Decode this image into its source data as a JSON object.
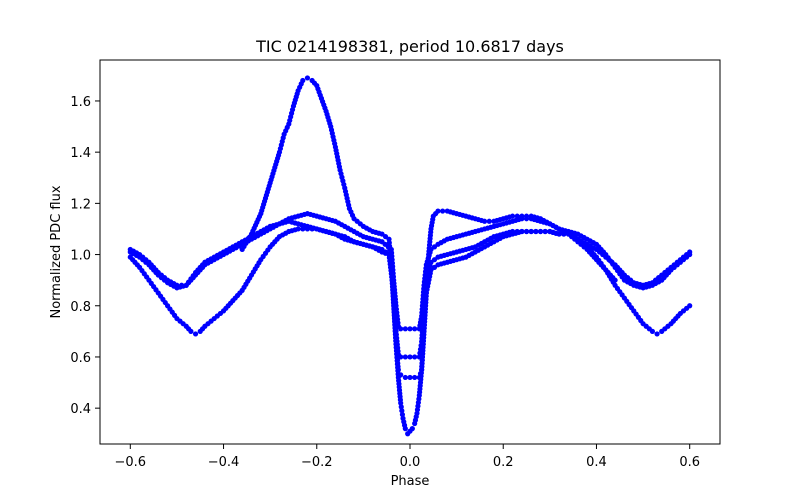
{
  "chart_data": {
    "type": "scatter",
    "title": "TIC 0214198381, period 10.6817 days",
    "xlabel": "Phase",
    "ylabel": "Normalized PDC flux",
    "xlim": [
      -0.665,
      0.665
    ],
    "ylim": [
      0.26,
      1.76
    ],
    "xticks": [
      -0.6,
      -0.4,
      -0.2,
      0.0,
      0.2,
      0.4,
      0.6
    ],
    "xtick_labels": [
      "−0.6",
      "−0.4",
      "−0.2",
      "0.0",
      "0.2",
      "0.4",
      "0.6"
    ],
    "yticks": [
      0.4,
      0.6,
      0.8,
      1.0,
      1.2,
      1.4,
      1.6
    ],
    "ytick_labels": [
      "0.4",
      "0.6",
      "0.8",
      "1.0",
      "1.2",
      "1.4",
      "1.6"
    ],
    "grid": false,
    "marker_color": "#0000ff",
    "series": [
      {
        "points": [
          [
            -0.6,
            1.02
          ],
          [
            -0.58,
            1.0
          ],
          [
            -0.56,
            0.97
          ],
          [
            -0.54,
            0.93
          ],
          [
            -0.52,
            0.9
          ],
          [
            -0.5,
            0.88
          ],
          [
            -0.48,
            0.88
          ],
          [
            -0.46,
            0.92
          ],
          [
            -0.44,
            0.96
          ],
          [
            -0.42,
            0.98
          ],
          [
            -0.4,
            1.0
          ],
          [
            -0.38,
            1.02
          ],
          [
            -0.36,
            1.04
          ],
          [
            -0.34,
            1.06
          ],
          [
            -0.32,
            1.08
          ],
          [
            -0.3,
            1.1
          ],
          [
            -0.28,
            1.12
          ],
          [
            -0.26,
            1.14
          ],
          [
            -0.24,
            1.15
          ],
          [
            -0.22,
            1.16
          ],
          [
            -0.2,
            1.15
          ],
          [
            -0.18,
            1.14
          ],
          [
            -0.16,
            1.13
          ],
          [
            -0.14,
            1.11
          ],
          [
            -0.12,
            1.09
          ],
          [
            -0.1,
            1.07
          ],
          [
            -0.08,
            1.06
          ],
          [
            -0.06,
            1.05
          ],
          [
            -0.04,
            1.02
          ],
          [
            -0.035,
            0.9
          ],
          [
            -0.03,
            0.8
          ],
          [
            -0.025,
            0.72
          ],
          [
            -0.02,
            0.71
          ],
          [
            -0.01,
            0.71
          ],
          [
            0.0,
            0.71
          ],
          [
            0.01,
            0.71
          ],
          [
            0.02,
            0.71
          ],
          [
            0.025,
            0.76
          ],
          [
            0.03,
            0.88
          ],
          [
            0.035,
            0.96
          ],
          [
            0.045,
            1.02
          ],
          [
            0.06,
            1.04
          ],
          [
            0.08,
            1.06
          ],
          [
            0.1,
            1.07
          ],
          [
            0.12,
            1.08
          ],
          [
            0.14,
            1.09
          ],
          [
            0.16,
            1.1
          ],
          [
            0.18,
            1.11
          ],
          [
            0.2,
            1.12
          ],
          [
            0.22,
            1.13
          ],
          [
            0.24,
            1.14
          ],
          [
            0.26,
            1.14
          ],
          [
            0.28,
            1.13
          ],
          [
            0.3,
            1.12
          ],
          [
            0.32,
            1.1
          ],
          [
            0.34,
            1.09
          ],
          [
            0.36,
            1.08
          ],
          [
            0.38,
            1.06
          ],
          [
            0.4,
            1.04
          ],
          [
            0.42,
            1.0
          ],
          [
            0.44,
            0.95
          ],
          [
            0.46,
            0.9
          ],
          [
            0.48,
            0.88
          ],
          [
            0.5,
            0.87
          ],
          [
            0.52,
            0.88
          ],
          [
            0.54,
            0.9
          ],
          [
            0.56,
            0.94
          ],
          [
            0.58,
            0.97
          ],
          [
            0.6,
            1.0
          ]
        ]
      },
      {
        "points": [
          [
            -0.6,
            1.01
          ],
          [
            -0.58,
            0.99
          ],
          [
            -0.56,
            0.96
          ],
          [
            -0.54,
            0.92
          ],
          [
            -0.52,
            0.89
          ],
          [
            -0.5,
            0.87
          ],
          [
            -0.48,
            0.88
          ],
          [
            -0.46,
            0.93
          ],
          [
            -0.44,
            0.97
          ],
          [
            -0.42,
            0.99
          ],
          [
            -0.4,
            1.01
          ],
          [
            -0.38,
            1.03
          ],
          [
            -0.36,
            1.05
          ],
          [
            -0.34,
            1.07
          ],
          [
            -0.32,
            1.09
          ],
          [
            -0.3,
            1.11
          ],
          [
            -0.28,
            1.12
          ],
          [
            -0.26,
            1.13
          ],
          [
            -0.24,
            1.12
          ],
          [
            -0.22,
            1.11
          ],
          [
            -0.2,
            1.1
          ],
          [
            -0.18,
            1.09
          ],
          [
            -0.16,
            1.08
          ],
          [
            -0.14,
            1.06
          ],
          [
            -0.12,
            1.05
          ],
          [
            -0.1,
            1.04
          ],
          [
            -0.08,
            1.03
          ],
          [
            -0.06,
            1.02
          ],
          [
            -0.045,
            1.0
          ],
          [
            -0.035,
            0.85
          ],
          [
            -0.03,
            0.7
          ],
          [
            -0.025,
            0.61
          ],
          [
            -0.02,
            0.6
          ],
          [
            -0.01,
            0.6
          ],
          [
            0.0,
            0.6
          ],
          [
            0.01,
            0.6
          ],
          [
            0.02,
            0.6
          ],
          [
            0.025,
            0.66
          ],
          [
            0.03,
            0.8
          ],
          [
            0.035,
            0.9
          ],
          [
            0.045,
            0.97
          ],
          [
            0.06,
            0.99
          ],
          [
            0.08,
            1.0
          ],
          [
            0.1,
            1.01
          ],
          [
            0.12,
            1.02
          ],
          [
            0.14,
            1.03
          ],
          [
            0.16,
            1.05
          ],
          [
            0.18,
            1.07
          ],
          [
            0.2,
            1.08
          ],
          [
            0.22,
            1.09
          ],
          [
            0.24,
            1.09
          ],
          [
            0.26,
            1.09
          ],
          [
            0.28,
            1.09
          ],
          [
            0.3,
            1.09
          ],
          [
            0.32,
            1.08
          ],
          [
            0.34,
            1.08
          ],
          [
            0.36,
            1.06
          ],
          [
            0.38,
            1.04
          ],
          [
            0.4,
            1.02
          ],
          [
            0.42,
            0.99
          ],
          [
            0.44,
            0.96
          ],
          [
            0.46,
            0.92
          ],
          [
            0.48,
            0.89
          ],
          [
            0.5,
            0.88
          ],
          [
            0.52,
            0.89
          ],
          [
            0.54,
            0.92
          ],
          [
            0.56,
            0.95
          ],
          [
            0.58,
            0.98
          ],
          [
            0.6,
            1.01
          ]
        ]
      },
      {
        "points": [
          [
            -0.6,
            0.99
          ],
          [
            -0.58,
            0.95
          ],
          [
            -0.56,
            0.9
          ],
          [
            -0.54,
            0.85
          ],
          [
            -0.52,
            0.8
          ],
          [
            -0.5,
            0.75
          ],
          [
            -0.48,
            0.72
          ],
          [
            -0.47,
            0.7
          ],
          [
            -0.46,
            0.69
          ],
          [
            -0.45,
            0.7
          ],
          [
            -0.44,
            0.72
          ],
          [
            -0.42,
            0.75
          ],
          [
            -0.4,
            0.78
          ],
          [
            -0.38,
            0.82
          ],
          [
            -0.36,
            0.86
          ],
          [
            -0.34,
            0.92
          ],
          [
            -0.32,
            0.98
          ],
          [
            -0.3,
            1.03
          ],
          [
            -0.28,
            1.07
          ],
          [
            -0.26,
            1.09
          ],
          [
            -0.24,
            1.1
          ],
          [
            -0.22,
            1.1
          ],
          [
            -0.2,
            1.1
          ],
          [
            -0.18,
            1.09
          ],
          [
            -0.16,
            1.08
          ],
          [
            -0.14,
            1.07
          ],
          [
            -0.12,
            1.05
          ],
          [
            -0.1,
            1.04
          ],
          [
            -0.08,
            1.03
          ],
          [
            -0.06,
            1.01
          ],
          [
            -0.045,
            1.0
          ],
          [
            -0.04,
            0.95
          ],
          [
            -0.035,
            0.8
          ],
          [
            -0.03,
            0.65
          ],
          [
            -0.025,
            0.55
          ],
          [
            -0.02,
            0.53
          ],
          [
            -0.01,
            0.52
          ],
          [
            0.0,
            0.52
          ],
          [
            0.01,
            0.52
          ],
          [
            0.02,
            0.52
          ],
          [
            0.025,
            0.55
          ],
          [
            0.03,
            0.7
          ],
          [
            0.035,
            0.85
          ],
          [
            0.045,
            0.94
          ],
          [
            0.06,
            0.96
          ],
          [
            0.08,
            0.97
          ],
          [
            0.1,
            0.98
          ],
          [
            0.12,
            0.99
          ],
          [
            0.14,
            1.01
          ],
          [
            0.16,
            1.03
          ],
          [
            0.18,
            1.05
          ],
          [
            0.2,
            1.07
          ],
          [
            0.22,
            1.08
          ],
          [
            0.24,
            1.09
          ],
          [
            0.26,
            1.09
          ],
          [
            0.28,
            1.09
          ],
          [
            0.3,
            1.09
          ],
          [
            0.32,
            1.08
          ],
          [
            0.34,
            1.08
          ],
          [
            0.36,
            1.06
          ],
          [
            0.38,
            1.03
          ],
          [
            0.4,
            0.99
          ],
          [
            0.42,
            0.94
          ],
          [
            0.44,
            0.88
          ],
          [
            0.46,
            0.83
          ],
          [
            0.48,
            0.78
          ],
          [
            0.5,
            0.73
          ],
          [
            0.52,
            0.7
          ],
          [
            0.53,
            0.69
          ],
          [
            0.54,
            0.7
          ],
          [
            0.56,
            0.73
          ],
          [
            0.58,
            0.77
          ],
          [
            0.6,
            0.8
          ]
        ]
      },
      {
        "points": [
          [
            -0.36,
            1.02
          ],
          [
            -0.34,
            1.08
          ],
          [
            -0.32,
            1.16
          ],
          [
            -0.31,
            1.22
          ],
          [
            -0.3,
            1.28
          ],
          [
            -0.29,
            1.34
          ],
          [
            -0.28,
            1.4
          ],
          [
            -0.27,
            1.47
          ],
          [
            -0.26,
            1.51
          ],
          [
            -0.25,
            1.58
          ],
          [
            -0.24,
            1.64
          ],
          [
            -0.23,
            1.68
          ],
          [
            -0.22,
            1.69
          ],
          [
            -0.21,
            1.68
          ],
          [
            -0.2,
            1.66
          ],
          [
            -0.19,
            1.61
          ],
          [
            -0.18,
            1.56
          ],
          [
            -0.17,
            1.5
          ],
          [
            -0.16,
            1.42
          ],
          [
            -0.15,
            1.33
          ],
          [
            -0.14,
            1.26
          ],
          [
            -0.13,
            1.18
          ],
          [
            -0.12,
            1.14
          ],
          [
            -0.1,
            1.11
          ],
          [
            -0.08,
            1.09
          ],
          [
            -0.06,
            1.08
          ],
          [
            -0.045,
            1.06
          ],
          [
            -0.04,
            0.95
          ],
          [
            -0.035,
            0.82
          ],
          [
            -0.03,
            0.65
          ],
          [
            -0.025,
            0.52
          ],
          [
            -0.02,
            0.42
          ],
          [
            -0.015,
            0.36
          ],
          [
            -0.01,
            0.32
          ],
          [
            -0.005,
            0.3
          ],
          [
            0.0,
            0.31
          ],
          [
            0.005,
            0.32
          ],
          [
            0.01,
            0.34
          ],
          [
            0.015,
            0.38
          ],
          [
            0.02,
            0.45
          ],
          [
            0.025,
            0.55
          ],
          [
            0.03,
            0.7
          ],
          [
            0.035,
            0.85
          ],
          [
            0.04,
            1.0
          ],
          [
            0.045,
            1.1
          ],
          [
            0.05,
            1.15
          ],
          [
            0.06,
            1.17
          ],
          [
            0.08,
            1.17
          ],
          [
            0.1,
            1.16
          ],
          [
            0.12,
            1.15
          ],
          [
            0.14,
            1.14
          ],
          [
            0.16,
            1.13
          ],
          [
            0.18,
            1.13
          ],
          [
            0.2,
            1.14
          ],
          [
            0.22,
            1.15
          ],
          [
            0.24,
            1.15
          ],
          [
            0.26,
            1.15
          ],
          [
            0.28,
            1.14
          ],
          [
            0.3,
            1.12
          ],
          [
            0.32,
            1.1
          ],
          [
            0.34,
            1.08
          ],
          [
            0.36,
            1.05
          ],
          [
            0.38,
            1.02
          ],
          [
            0.4,
            0.98
          ],
          [
            0.42,
            0.94
          ],
          [
            0.44,
            0.9
          ]
        ]
      }
    ]
  }
}
